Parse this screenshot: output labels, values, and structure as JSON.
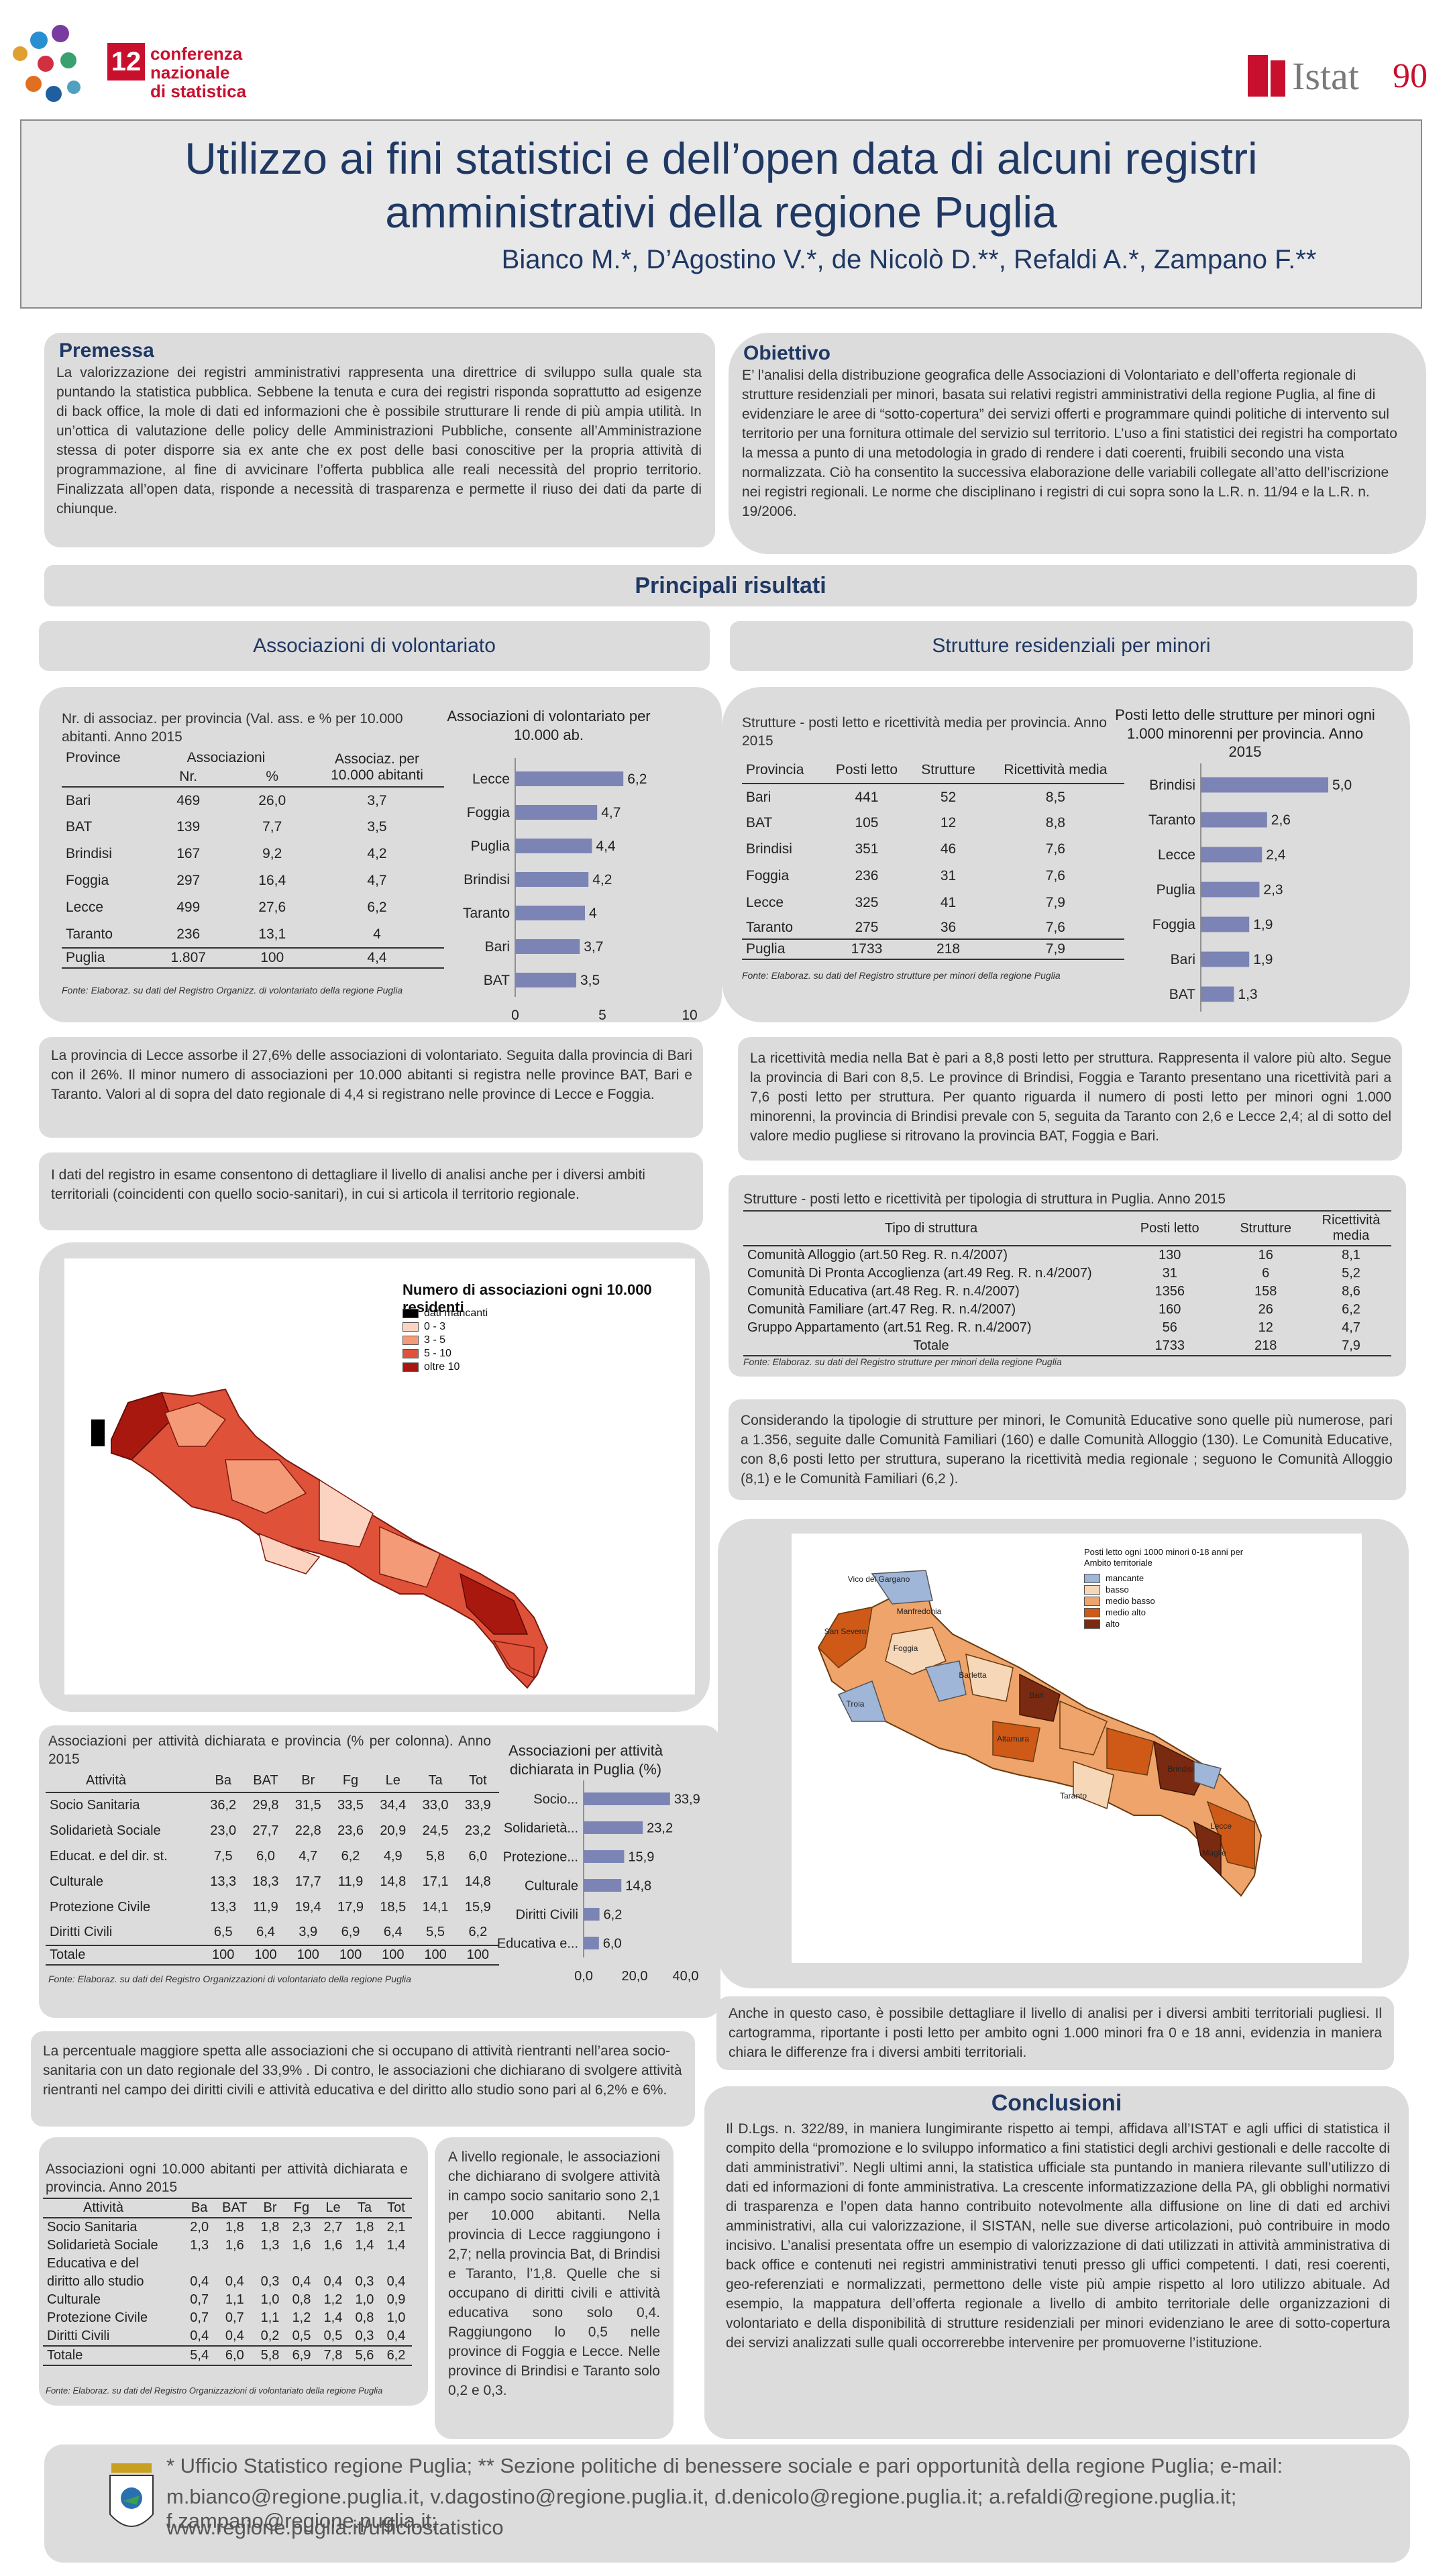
{
  "header": {
    "conf_line1": "conferenza nazionale",
    "conf_line2": "di statistica",
    "conf_number": "12",
    "istat": "Istat",
    "istat_90": "90",
    "title_line1": "Utilizzo ai fini statistici e dell’open data di alcuni registri",
    "title_line2": "amministrativi della regione Puglia",
    "authors": "Bianco M.*, D’Agostino V.*, de Nicolò D.**, Refaldi A.*, Zampano F.**"
  },
  "premessa": {
    "heading": "Premessa",
    "text": "La valorizzazione dei registri amministrativi rappresenta una direttrice di sviluppo sulla quale sta puntando la statistica pubblica. Sebbene la tenuta e cura dei registri risponda soprattutto ad esigenze di back office, la mole di dati ed informazioni che è possibile strutturare li rende di più ampia utilità. In un’ottica di valutazione delle policy delle Amministrazioni Pubbliche, consente all’Amministrazione stessa di poter disporre sia ex ante che ex post delle basi conoscitive per la propria attività di programmazione, al fine di avvicinare l’offerta pubblica alle reali necessità del proprio territorio. Finalizzata all’open data, risponde a necessità di trasparenza e permette il riuso dei dati da parte di chiunque."
  },
  "obiettivo": {
    "heading": "Obiettivo",
    "text": "E’ l’analisi della distribuzione geografica delle Associazioni di Volontariato e dell’offerta regionale di strutture residenziali per minori, basata sui relativi registri amministrativi della regione Puglia, al fine di evidenziare le aree di “sotto-copertura” dei servizi offerti e programmare quindi politiche di intervento sul territorio per una fornitura ottimale del servizio sul territorio. L’uso a fini statistici dei registri ha comportato la messa a punto di una metodologia in grado di rendere i dati coerenti, fruibili secondo una vista normalizzata. Ciò ha consentito la successiva elaborazione delle variabili collegate all’atto dell’iscrizione nei registri regionali. Le norme che disciplinano i registri di cui sopra sono la L.R. n. 11/94 e la L.R.  n. 19/2006."
  },
  "risultati_heading": "Principali risultati",
  "left_section": "Associazioni di volontariato",
  "right_section": "Strutture residenziali per minori",
  "t1": {
    "title": "Nr. di associaz.  per provincia (Val. ass. e % per 10.000 abitanti.  Anno 2015",
    "h_prov": "Province",
    "h_assoc": "Associazioni",
    "h_nr": "Nr.",
    "h_pct": "%",
    "h_per": "Associaz. per 10.000 abitanti",
    "rows": [
      [
        "Bari",
        "469",
        "26,0",
        "3,7"
      ],
      [
        "BAT",
        "139",
        "7,7",
        "3,5"
      ],
      [
        "Brindisi",
        "167",
        "9,2",
        "4,2"
      ],
      [
        "Foggia",
        "297",
        "16,4",
        "4,7"
      ],
      [
        "Lecce",
        "499",
        "27,6",
        "6,2"
      ],
      [
        "Taranto",
        "236",
        "13,1",
        "4"
      ],
      [
        "Puglia",
        "1.807",
        "100",
        "4,4"
      ]
    ],
    "source": "Fonte: Elaboraz. su dati del Registro Organizz. di volontariato della regione Puglia"
  },
  "c1": {
    "title": "Associazioni di volontariato per 10.000 ab.",
    "bar_color": "#7b84b5",
    "axis_max": 10,
    "ticks": [
      "0",
      "5",
      "10"
    ],
    "categories": [
      "Lecce",
      "Foggia",
      "Puglia",
      "Brindisi",
      "Taranto",
      "Bari",
      "BAT"
    ],
    "values": [
      6.2,
      4.7,
      4.4,
      4.2,
      4,
      3.7,
      3.5
    ],
    "labels": [
      "6,2",
      "4,7",
      "4,4",
      "4,2",
      "4",
      "3,7",
      "3,5"
    ]
  },
  "t2": {
    "title": "Strutture - posti letto e ricettività media per provincia. Anno 2015",
    "headers": [
      "Provincia",
      "Posti letto",
      "Strutture",
      "Ricettività media"
    ],
    "rows": [
      [
        "Bari",
        "441",
        "52",
        "8,5"
      ],
      [
        "BAT",
        "105",
        "12",
        "8,8"
      ],
      [
        "Brindisi",
        "351",
        "46",
        "7,6"
      ],
      [
        "Foggia",
        "236",
        "31",
        "7,6"
      ],
      [
        "Lecce",
        "325",
        "41",
        "7,9"
      ],
      [
        "Taranto",
        "275",
        "36",
        "7,6"
      ],
      [
        "Puglia",
        "1733",
        "218",
        "7,9"
      ]
    ],
    "source": "Fonte: Elaboraz. su dati del Registro strutture per minori della regione Puglia"
  },
  "c2": {
    "title": "Posti letto delle strutture per minori ogni 1.000 minorenni per provincia. Anno 2015",
    "bar_color": "#7b84b5",
    "axis_max": 5,
    "categories": [
      "Brindisi",
      "Taranto",
      "Lecce",
      "Puglia",
      "Foggia",
      "Bari",
      "BAT"
    ],
    "values": [
      5.0,
      2.6,
      2.4,
      2.3,
      1.9,
      1.9,
      1.3
    ],
    "labels": [
      "5,0",
      "2,6",
      "2,4",
      "2,3",
      "1,9",
      "1,9",
      "1,3"
    ]
  },
  "p_lecce": "La provincia di Lecce assorbe il 27,6% delle associazioni di volontariato. Seguita dalla provincia di Bari con il 26%. Il minor numero di associazioni per 10.000 abitanti si registra  nelle province BAT, Bari e Taranto. Valori al di sopra del dato regionale di 4,4 si registrano nelle province di Lecce e Foggia.",
  "p_registro": "I dati del registro in esame consentono di dettagliare il livello di analisi anche per i diversi ambiti territoriali (coincidenti con quello socio-sanitari), in cui si articola il territorio regionale.",
  "p_ricett": "La ricettività media nella Bat è pari a 8,8 posti letto per struttura. Rappresenta il valore più alto. Segue la provincia di Bari con 8,5. Le province di Brindisi, Foggia e Taranto presentano una ricettività pari a 7,6 posti letto per struttura. Per quanto riguarda il numero di posti letto per minori ogni 1.000 minorenni, la provincia di Brindisi prevale con 5, seguita da Taranto con 2,6 e Lecce 2,4; al di sotto del valore medio pugliese si ritrovano la provincia BAT, Foggia e Bari.",
  "map1": {
    "title": "Numero di associazioni ogni 10.000 residenti",
    "legend": [
      {
        "label": "dati mancanti",
        "color": "#000000"
      },
      {
        "label": "0 - 3",
        "color": "#fbd3c0"
      },
      {
        "label": "3 - 5",
        "color": "#f59a77"
      },
      {
        "label": "5 - 10",
        "color": "#e0513a"
      },
      {
        "label": "oltre 10",
        "color": "#a8180f"
      }
    ]
  },
  "t3": {
    "title": "Strutture - posti letto e ricettività per tipologia di struttura in Puglia. Anno 2015",
    "headers": [
      "Tipo di struttura",
      "Posti letto",
      "Strutture",
      "Ricettività media"
    ],
    "rows": [
      [
        "Comunità Alloggio (art.50 Reg. R. n.4/2007)",
        "130",
        "16",
        "8,1"
      ],
      [
        "Comunità Di Pronta Accoglienza (art.49 Reg. R. n.4/2007)",
        "31",
        "6",
        "5,2"
      ],
      [
        "Comunità Educativa (art.48 Reg. R. n.4/2007)",
        "1356",
        "158",
        "8,6"
      ],
      [
        "Comunità Familiare (art.47 Reg. R. n.4/2007)",
        "160",
        "26",
        "6,2"
      ],
      [
        "Gruppo Appartamento (art.51 Reg. R. n.4/2007)",
        "56",
        "12",
        "4,7"
      ],
      [
        "Totale",
        "1733",
        "218",
        "7,9"
      ]
    ],
    "source": "Fonte: Elaboraz. su dati del Registro strutture per minori della regione Puglia"
  },
  "p_tipologie": "Considerando la tipologie di strutture per minori, le Comunità Educative sono quelle più numerose, pari a 1.356, seguite dalle Comunità Familiari (160) e dalle Comunità Alloggio (130). Le Comunità Educative, con 8,6 posti letto per struttura, superano la ricettività media regionale ; seguono le Comunità Alloggio (8,1) e le Comunità Familiari (6,2 ).",
  "map2": {
    "title": "Posti letto ogni 1000 minori 0-18 anni per Ambito territoriale",
    "legend": [
      {
        "label": "mancante",
        "color": "#9fb6d8"
      },
      {
        "label": "basso",
        "color": "#f6d7b8"
      },
      {
        "label": "medio basso",
        "color": "#eea46a"
      },
      {
        "label": "medio alto",
        "color": "#cf5a18"
      },
      {
        "label": "alto",
        "color": "#7a2a10"
      }
    ],
    "place_labels": [
      "Vico del Gargano",
      "San Severo",
      "Manfredonia",
      "Foggia",
      "Troia",
      "Barletta",
      "Bari",
      "Altamura",
      "Taranto",
      "Brindisi",
      "Lecce",
      "Maglie"
    ]
  },
  "t4": {
    "title": "Associazioni per attività dichiarata e provincia (% per colonna). Anno 2015",
    "headers": [
      "Attività",
      "Ba",
      "BAT",
      "Br",
      "Fg",
      "Le",
      "Ta",
      "Tot"
    ],
    "rows": [
      [
        "Socio Sanitaria",
        "36,2",
        "29,8",
        "31,5",
        "33,5",
        "34,4",
        "33,0",
        "33,9"
      ],
      [
        "Solidarietà Sociale",
        "23,0",
        "27,7",
        "22,8",
        "23,6",
        "20,9",
        "24,5",
        "23,2"
      ],
      [
        "Educat. e del dir. st.",
        "7,5",
        "6,0",
        "4,7",
        "6,2",
        "4,9",
        "5,8",
        "6,0"
      ],
      [
        "Culturale",
        "13,3",
        "18,3",
        "17,7",
        "11,9",
        "14,8",
        "17,1",
        "14,8"
      ],
      [
        "Protezione Civile",
        "13,3",
        "11,9",
        "19,4",
        "17,9",
        "18,5",
        "14,1",
        "15,9"
      ],
      [
        "Diritti Civili",
        "6,5",
        "6,4",
        "3,9",
        "6,9",
        "6,4",
        "5,5",
        "6,2"
      ],
      [
        "Totale",
        "100",
        "100",
        "100",
        "100",
        "100",
        "100",
        "100"
      ]
    ],
    "source": "Fonte: Elaboraz. su dati del Registro Organizzazioni di volontariato della regione Puglia"
  },
  "c3": {
    "title": "Associazioni per attività dichiarata  in Puglia (%)",
    "bar_color": "#7b84b5",
    "axis_max": 40,
    "ticks": [
      "0,0",
      "20,0",
      "40,0"
    ],
    "categories": [
      "Socio...",
      "Solidarietà...",
      "Protezione...",
      "Culturale",
      "Diritti Civili",
      "Educativa e..."
    ],
    "values": [
      33.9,
      23.2,
      15.9,
      14.8,
      6.2,
      6.0
    ],
    "labels": [
      "33,9",
      "23,2",
      "15,9",
      "14,8",
      "6,2",
      "6,0"
    ]
  },
  "p_percent": "La percentuale maggiore spetta alle associazioni che si occupano di attività rientranti nell’area socio-sanitaria con un dato regionale del 33,9% . Di contro, le associazioni che dichiarano di svolgere attività rientranti nel campo dei diritti civili e attività educativa e del diritto allo studio sono pari al 6,2% e 6%.",
  "p_ambiti": "Anche in questo caso, è possibile  dettagliare il livello di analisi per i diversi ambiti territoriali pugliesi. Il cartogramma, riportante i posti letto per ambito  ogni  1.000 minori fra 0 e 18 anni, evidenzia in maniera chiara le differenze fra i diversi ambiti territoriali.",
  "t5": {
    "title": "Associazioni ogni 10.000 abitanti per attività dichiarata e provincia. Anno 2015",
    "headers": [
      "Attività",
      "Ba",
      "BAT",
      "Br",
      "Fg",
      "Le",
      "Ta",
      "Tot"
    ],
    "rows": [
      [
        "Socio Sanitaria",
        "2,0",
        "1,8",
        "1,8",
        "2,3",
        "2,7",
        "1,8",
        "2,1"
      ],
      [
        "Solidarietà Sociale",
        "1,3",
        "1,6",
        "1,3",
        "1,6",
        "1,6",
        "1,4",
        "1,4"
      ],
      [
        "Educativa e del",
        "",
        "",
        "",
        "",
        "",
        "",
        ""
      ],
      [
        "diritto allo studio",
        "0,4",
        "0,4",
        "0,3",
        "0,4",
        "0,4",
        "0,3",
        "0,4"
      ],
      [
        "Culturale",
        "0,7",
        "1,1",
        "1,0",
        "0,8",
        "1,2",
        "1,0",
        "0,9"
      ],
      [
        "Protezione Civile",
        "0,7",
        "0,7",
        "1,1",
        "1,2",
        "1,4",
        "0,8",
        "1,0"
      ],
      [
        "Diritti Civili",
        "0,4",
        "0,4",
        "0,2",
        "0,5",
        "0,5",
        "0,3",
        "0,4"
      ],
      [
        "Totale",
        "5,4",
        "6,0",
        "5,8",
        "6,9",
        "7,8",
        "5,6",
        "6,2"
      ]
    ],
    "source": "Fonte: Elaboraz. su dati del Registro Organizzazioni di volontariato della regione Puglia"
  },
  "p_livello": "A livello regionale, le associazioni che dichiarano di svolgere attività in campo socio sanitario sono 2,1 per 10.000 abitanti. Nella provincia di Lecce raggiungono i 2,7; nella provincia Bat, di Brindisi e Taranto, l’1,8. Quelle che si occupano di diritti civili e attività educativa sono solo 0,4. Raggiungono lo 0,5 nelle province di Foggia e Lecce. Nelle province di Brindisi e Taranto solo 0,2 e 0,3.",
  "conclusioni": {
    "heading": "Conclusioni",
    "text": "Il D.Lgs. n. 322/89, in maniera lungimirante rispetto ai tempi, affidava all’ISTAT e agli uffici di statistica il compito della “promozione e lo sviluppo informatico a fini statistici degli archivi gestionali e delle raccolte di dati amministrativi”. Negli ultimi anni, la statistica ufficiale sta puntando in maniera rilevante sull’utilizzo di dati ed informazioni di fonte amministrativa. La crescente informatizzazione della PA, gli obblighi normativi di trasparenza e l’open data hanno contribuito notevolmente alla diffusione on line di dati ed archivi amministrativi, alla cui valorizzazione, il SISTAN, nelle sue diverse articolazioni, può contribuire in modo incisivo. L’analisi presentata offre un esempio di valorizzazione di dati utilizzati in attività amministrativa di back office e contenuti nei registri amministrativi tenuti presso gli uffici competenti. I dati, resi coerenti, geo-referenziati e normalizzati, permettono delle viste più ampie rispetto al loro utilizzo abituale. Ad esempio, la mappatura dell’offerta regionale a livello di ambito territoriale delle organizzazioni di volontariato e della disponibilità di strutture residenziali per minori evidenziano le aree di sotto-copertura dei servizi analizzati sulle quali occorrerebbe intervenire per promuoverne l’istituzione."
  },
  "footer": {
    "line1": "* Ufficio Statistico regione Puglia; ** Sezione politiche di benessere sociale e pari opportunità della regione Puglia; e-mail:",
    "line2": "m.bianco@regione.puglia.it,  v.dagostino@regione.puglia.it,  d.denicolo@regione.puglia.it;  a.refaldi@regione.puglia.it;  f.zampano@regione.puglia.it;",
    "line3": "www.regione.puglia.it/ufficiostatistico"
  }
}
